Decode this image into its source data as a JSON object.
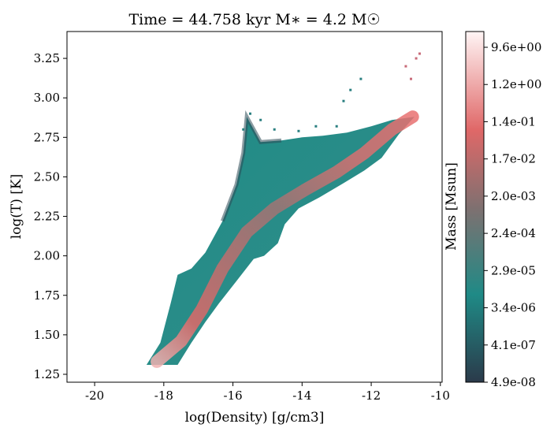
{
  "chart_data": {
    "type": "heatmap",
    "title": "Time = 44.758 kyr    M$_*$ = 4.2 M$_\\odot$",
    "title_display": "Time = 44.758 kyr    M∗ = 4.2 M☉",
    "xlabel": "log(Density) [g/cm3]",
    "ylabel": "log(T) [K]",
    "xlim": [
      -20.8,
      -9.95
    ],
    "ylim": [
      1.2,
      3.42
    ],
    "x_ticks": [
      -20,
      -18,
      -16,
      -14,
      -12,
      -10
    ],
    "x_tick_labels": [
      "-20",
      "-18",
      "-16",
      "-14",
      "-12",
      "-10"
    ],
    "y_ticks": [
      1.25,
      1.5,
      1.75,
      2.0,
      2.25,
      2.5,
      2.75,
      3.0,
      3.25
    ],
    "y_tick_labels": [
      "1.25",
      "1.50",
      "1.75",
      "2.00",
      "2.25",
      "2.50",
      "2.75",
      "3.00",
      "3.25"
    ],
    "colorbar": {
      "label": "Mass [Msun]",
      "scale": "log",
      "ticks": [
        "4.9e-08",
        "4.1e-07",
        "3.4e-06",
        "2.9e-05",
        "2.4e-04",
        "2.0e-03",
        "1.7e-02",
        "1.4e-01",
        "1.2e+00",
        "9.6e+00"
      ],
      "colormap": [
        "#2b3a4a",
        "#1f8a86",
        "#807070",
        "#e06868",
        "#fff5f5"
      ]
    },
    "region": {
      "upper_boundary": [
        [
          -18.5,
          1.31
        ],
        [
          -18.1,
          1.45
        ],
        [
          -17.8,
          1.7
        ],
        [
          -17.6,
          1.88
        ],
        [
          -17.2,
          1.92
        ],
        [
          -16.8,
          2.02
        ],
        [
          -16.3,
          2.22
        ],
        [
          -15.9,
          2.45
        ],
        [
          -15.7,
          2.65
        ],
        [
          -15.6,
          2.88
        ],
        [
          -15.2,
          2.72
        ],
        [
          -14.6,
          2.73
        ],
        [
          -14.0,
          2.75
        ],
        [
          -13.4,
          2.76
        ],
        [
          -12.7,
          2.78
        ],
        [
          -12.0,
          2.82
        ],
        [
          -11.4,
          2.86
        ],
        [
          -10.75,
          2.88
        ]
      ],
      "lower_boundary": [
        [
          -10.75,
          2.88
        ],
        [
          -11.2,
          2.77
        ],
        [
          -11.7,
          2.62
        ],
        [
          -12.2,
          2.54
        ],
        [
          -12.8,
          2.46
        ],
        [
          -13.5,
          2.37
        ],
        [
          -14.1,
          2.3
        ],
        [
          -14.5,
          2.2
        ],
        [
          -14.7,
          2.08
        ],
        [
          -15.1,
          2.0
        ],
        [
          -15.4,
          1.98
        ],
        [
          -15.9,
          1.84
        ],
        [
          -16.4,
          1.7
        ],
        [
          -16.8,
          1.58
        ],
        [
          -17.2,
          1.45
        ],
        [
          -17.6,
          1.31
        ],
        [
          -18.5,
          1.31
        ]
      ],
      "high_mass_ridge": [
        [
          -18.2,
          1.33
        ],
        [
          -17.5,
          1.46
        ],
        [
          -16.9,
          1.66
        ],
        [
          -16.3,
          1.92
        ],
        [
          -15.6,
          2.15
        ],
        [
          -14.8,
          2.3
        ],
        [
          -13.9,
          2.42
        ],
        [
          -13.0,
          2.53
        ],
        [
          -12.2,
          2.65
        ],
        [
          -11.4,
          2.8
        ],
        [
          -10.8,
          2.88
        ]
      ],
      "scattered_points": [
        [
          -10.6,
          3.28
        ],
        [
          -10.7,
          3.25
        ],
        [
          -11.0,
          3.2
        ],
        [
          -10.85,
          3.12
        ],
        [
          -12.3,
          3.12
        ],
        [
          -12.6,
          3.05
        ],
        [
          -12.8,
          2.98
        ],
        [
          -13.0,
          2.82
        ],
        [
          -13.6,
          2.82
        ],
        [
          -14.1,
          2.79
        ],
        [
          -14.8,
          2.8
        ],
        [
          -15.5,
          2.9
        ],
        [
          -15.2,
          2.86
        ],
        [
          -15.7,
          2.8
        ]
      ]
    }
  }
}
